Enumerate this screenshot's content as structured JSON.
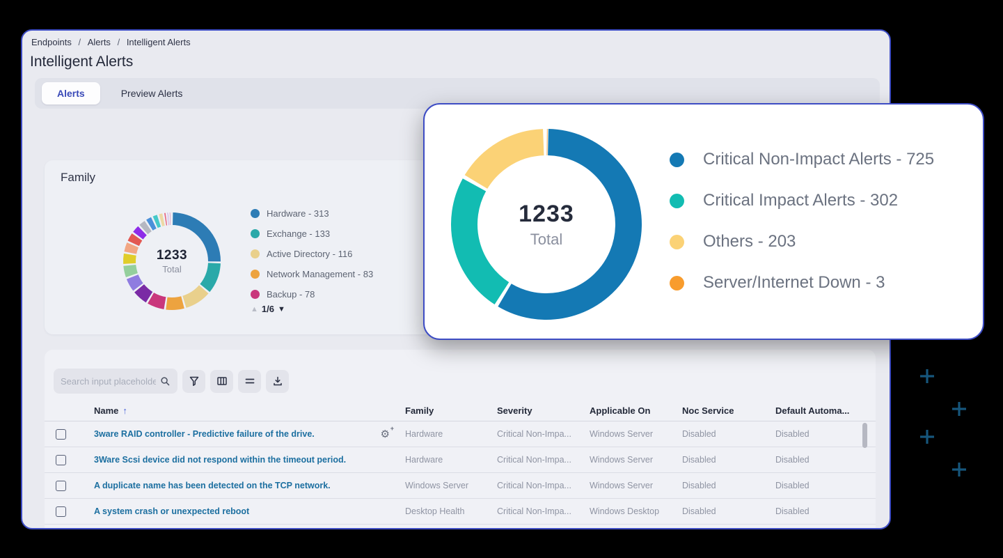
{
  "breadcrumb": {
    "items": [
      "Endpoints",
      "Alerts",
      "Intelligent Alerts"
    ],
    "separator": "/"
  },
  "page": {
    "title": "Intelligent Alerts"
  },
  "tabs": [
    {
      "label": "Alerts",
      "active": true
    },
    {
      "label": "Preview Alerts",
      "active": false
    }
  ],
  "family_card": {
    "title": "Family",
    "center_value": "1233",
    "center_label": "Total",
    "legend": [
      "Hardware - 313",
      "Exchange - 133",
      "Active Directory - 116",
      "Network Management - 83",
      "Backup - 78"
    ],
    "pagination": "1/6"
  },
  "popup": {
    "center_value": "1233",
    "center_label": "Total",
    "legend": [
      "Critical Non-Impact Alerts - 725",
      "Critical Impact Alerts - 302",
      "Others - 203",
      "Server/Internet Down - 3"
    ]
  },
  "chart_data": [
    {
      "type": "pie",
      "subtype": "donut",
      "title": "Family",
      "center_text": {
        "value": 1233,
        "label": "Total"
      },
      "legend_position": "right",
      "legend_page": "1/6",
      "segments": [
        {
          "name": "Hardware",
          "value": 313,
          "color": "#2d7cb5"
        },
        {
          "name": "Exchange",
          "value": 133,
          "color": "#2aa9a9"
        },
        {
          "name": "Active Directory",
          "value": 116,
          "color": "#e9d08c"
        },
        {
          "name": "Network Management",
          "value": 83,
          "color": "#eda33f"
        },
        {
          "name": "Backup",
          "value": 78,
          "color": "#c9377c"
        },
        {
          "name": "unlabeled-estimated",
          "value": 70,
          "color": "#7a2ba5",
          "estimated": true
        },
        {
          "name": "unlabeled-estimated",
          "value": 62,
          "color": "#8f7ce0",
          "estimated": true
        },
        {
          "name": "unlabeled-estimated",
          "value": 55,
          "color": "#94cf9c",
          "estimated": true
        },
        {
          "name": "unlabeled-estimated",
          "value": 50,
          "color": "#e0cd2a",
          "estimated": true
        },
        {
          "name": "unlabeled-estimated",
          "value": 46,
          "color": "#f2a683",
          "estimated": true
        },
        {
          "name": "unlabeled-estimated",
          "value": 42,
          "color": "#e25852",
          "estimated": true
        },
        {
          "name": "unlabeled-estimated",
          "value": 38,
          "color": "#8e2ce8",
          "estimated": true
        },
        {
          "name": "unlabeled-estimated",
          "value": 34,
          "color": "#b5b7c1",
          "estimated": true
        },
        {
          "name": "unlabeled-estimated",
          "value": 30,
          "color": "#4a90d9",
          "estimated": true
        },
        {
          "name": "unlabeled-estimated",
          "value": 26,
          "color": "#45c9c9",
          "estimated": true
        },
        {
          "name": "unlabeled-estimated",
          "value": 22,
          "color": "#edd9a4",
          "estimated": true
        },
        {
          "name": "unlabeled-estimated",
          "value": 13,
          "color": "#e8647e",
          "estimated": true
        },
        {
          "name": "unlabeled-estimated",
          "value": 9,
          "color": "#a055d6",
          "estimated": true
        },
        {
          "name": "unlabeled-estimated",
          "value": 7,
          "color": "#cc4a90",
          "estimated": true
        },
        {
          "name": "unlabeled-estimated",
          "value": 6,
          "color": "#e9e0ea",
          "estimated": true
        }
      ]
    },
    {
      "type": "pie",
      "subtype": "donut",
      "title": "",
      "center_text": {
        "value": 1233,
        "label": "Total"
      },
      "legend_position": "right",
      "segments": [
        {
          "name": "Critical Non-Impact Alerts",
          "value": 725,
          "color": "#1479b4"
        },
        {
          "name": "Critical Impact Alerts",
          "value": 302,
          "color": "#12bcb2"
        },
        {
          "name": "Others",
          "value": 203,
          "color": "#fbd276"
        },
        {
          "name": "Server/Internet Down",
          "value": 3,
          "color": "#f89c2d"
        }
      ]
    }
  ],
  "toolbar": {
    "search_placeholder": "Search input placeholde"
  },
  "table": {
    "columns": [
      "Name",
      "Family",
      "Severity",
      "Applicable On",
      "Noc Service",
      "Default Automa..."
    ],
    "sort_indicator": "↑",
    "rows": [
      {
        "name": "3ware RAID controller - Predictive failure of the drive.",
        "family": "Hardware",
        "severity": "Critical Non-Impa...",
        "applicable_on": "Windows Server",
        "noc_service": "Disabled",
        "default_automation": "Disabled"
      },
      {
        "name": "3Ware Scsi device did not respond within the timeout period.",
        "family": "Hardware",
        "severity": "Critical Non-Impa...",
        "applicable_on": "Windows Server",
        "noc_service": "Disabled",
        "default_automation": "Disabled"
      },
      {
        "name": "A duplicate name has been detected on the TCP network.",
        "family": "Windows Server",
        "severity": "Critical Non-Impa...",
        "applicable_on": "Windows Server",
        "noc_service": "Disabled",
        "default_automation": "Disabled"
      },
      {
        "name": "A system crash or unexpected reboot",
        "family": "Desktop Health",
        "severity": "Critical Non-Impa...",
        "applicable_on": "Windows Desktop",
        "noc_service": "Disabled",
        "default_automation": "Disabled"
      }
    ]
  },
  "colors": {
    "accent_border": "#3d4cc4",
    "active_tab_text": "#3a4ab8",
    "link_text": "#1c6fa0",
    "background": "#000000",
    "plus_decoration": "#16567c"
  }
}
